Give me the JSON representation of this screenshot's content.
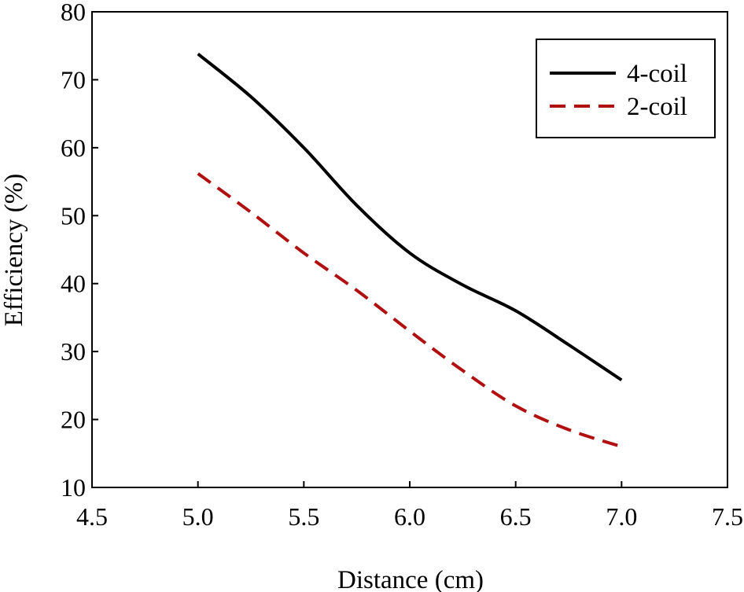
{
  "chart_data": {
    "type": "line",
    "title": "",
    "xlabel": "Distance (cm)",
    "ylabel": "Efficiency (%)",
    "xlim": [
      4.5,
      7.5
    ],
    "ylim": [
      10,
      80
    ],
    "xticks": [
      "4.5",
      "5.0",
      "5.5",
      "6.0",
      "6.5",
      "7.0",
      "7.5"
    ],
    "yticks": [
      "10",
      "20",
      "30",
      "40",
      "50",
      "60",
      "70",
      "80"
    ],
    "grid": false,
    "legend_position": "top-right",
    "series": [
      {
        "name": "4-coil",
        "color": "#000000",
        "style": "solid",
        "x": [
          5.0,
          5.25,
          5.5,
          5.75,
          6.0,
          6.25,
          6.5,
          6.75,
          7.0
        ],
        "y": [
          73.8,
          67.5,
          60.0,
          51.5,
          44.5,
          39.8,
          36.0,
          31.0,
          25.8
        ]
      },
      {
        "name": "2-coil",
        "color": "#b01010",
        "style": "dashed",
        "x": [
          5.0,
          5.25,
          5.5,
          5.75,
          6.0,
          6.25,
          6.5,
          6.75,
          7.0
        ],
        "y": [
          56.2,
          50.5,
          44.5,
          39.0,
          33.0,
          27.2,
          22.0,
          18.5,
          16.0
        ]
      }
    ]
  }
}
